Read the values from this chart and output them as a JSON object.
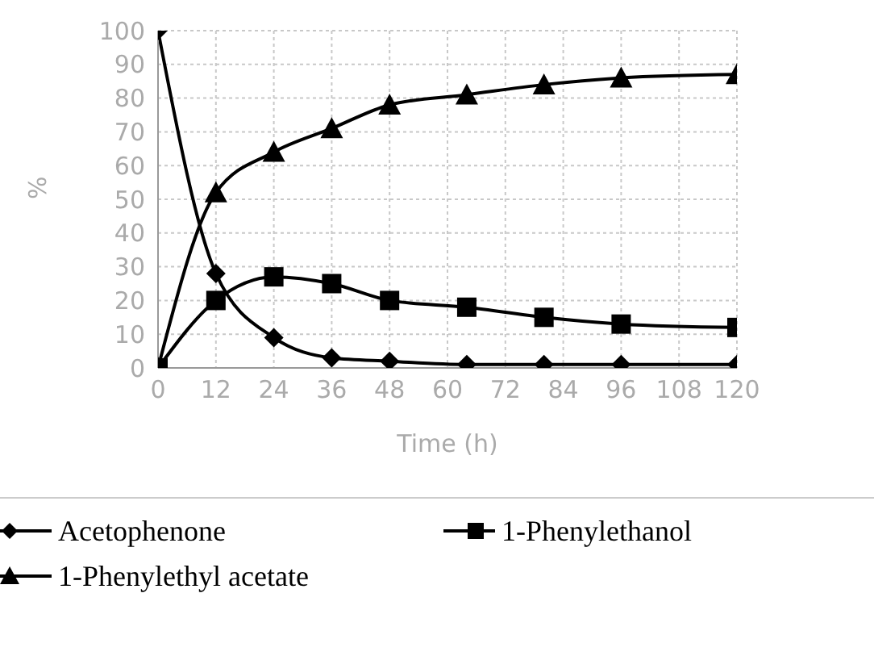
{
  "chart_data": {
    "type": "line",
    "xlabel": "Time (h)",
    "ylabel": "%",
    "x": [
      0,
      12,
      24,
      36,
      48,
      64,
      80,
      96,
      120
    ],
    "xlim": [
      0,
      120
    ],
    "xticks": [
      0,
      12,
      24,
      36,
      48,
      60,
      72,
      84,
      96,
      108,
      120
    ],
    "ylim": [
      0,
      100
    ],
    "yticks": [
      0,
      10,
      20,
      30,
      40,
      50,
      60,
      70,
      80,
      90,
      100
    ],
    "grid": true,
    "legend": "bottom",
    "series": [
      {
        "name": "Acetophenone",
        "color": "#000000",
        "marker": "diamond",
        "values": [
          100,
          28,
          9,
          3,
          2,
          1,
          1,
          1,
          1
        ]
      },
      {
        "name": "1-Phenylethanol",
        "color": "#000000",
        "marker": "square",
        "values": [
          0,
          20,
          27,
          25,
          20,
          18,
          15,
          13,
          12
        ]
      },
      {
        "name": "1-Phenylethyl acetate",
        "color": "#000000",
        "marker": "triangle",
        "values": [
          0,
          52,
          64,
          71,
          78,
          81,
          84,
          86,
          87
        ]
      }
    ]
  }
}
